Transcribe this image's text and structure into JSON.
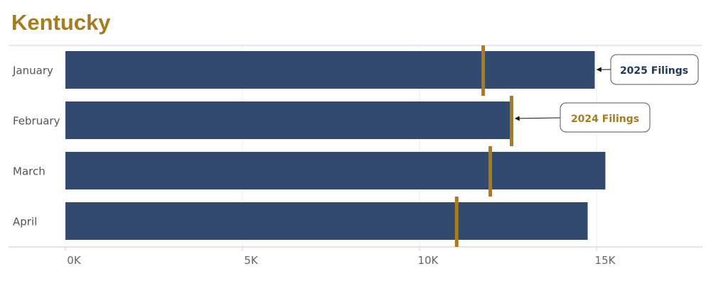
{
  "title": "Kentucky",
  "colors": {
    "title": "#A67C1E",
    "bar_2025": "#314A6E",
    "marker_2024": "#A67C1E",
    "callout_2025_text": "#1F3A5F",
    "callout_2024_text": "#A67C1E"
  },
  "chart_data": {
    "type": "bar",
    "orientation": "horizontal",
    "categories": [
      "January",
      "February",
      "March",
      "April"
    ],
    "series": [
      {
        "name": "2025 Filings",
        "values": [
          14950,
          12550,
          15250,
          14750
        ]
      },
      {
        "name": "2024 Filings",
        "values": [
          11800,
          12600,
          12000,
          11050
        ]
      }
    ],
    "xlim": [
      0,
      18000
    ],
    "xticks": [
      0,
      5000,
      10000,
      15000
    ],
    "xtick_labels": [
      "0K",
      "5K",
      "10K",
      "15K"
    ],
    "grid": true,
    "annotations": [
      {
        "text": "2025 Filings",
        "series": "2025 Filings",
        "category": "January"
      },
      {
        "text": "2024 Filings",
        "series": "2024 Filings",
        "category": "February"
      }
    ]
  }
}
